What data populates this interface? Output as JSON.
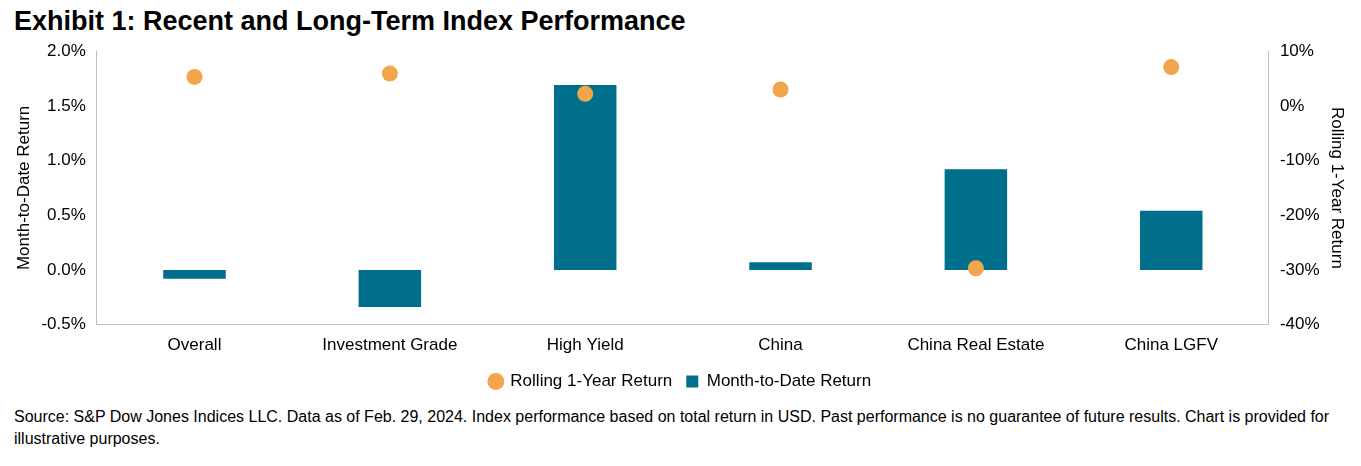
{
  "chart_data": {
    "type": "bar",
    "title": "Exhibit 1: Recent and Long-Term Index Performance",
    "annotations": [
      "Source: S&P Dow Jones Indices LLC.  Data as of Feb. 29, 2024.  Index performance based on total return in USD.  Past performance is no guarantee of future results.  Chart is provided for illustrative purposes."
    ],
    "y_label": "Month-to-Date Return",
    "y2_label": "Rolling 1-Year Return",
    "categories": [
      "Overall",
      "Investment Grade",
      "High Yield",
      "China",
      "China Real Estate",
      "China LGFV"
    ],
    "series": [
      {
        "name": "Month-to-Date Return",
        "type": "bar",
        "color": "#006f8b",
        "values": [
          -0.08,
          -0.34,
          1.69,
          0.07,
          0.92,
          0.54
        ]
      },
      {
        "name": "Rolling 1-Year Return",
        "type": "scatter",
        "marker": "circle",
        "axis": "y2",
        "color": "#f2a54a",
        "values": [
          5.3,
          5.9,
          2.2,
          3.0,
          -29.7,
          7.1
        ]
      }
    ],
    "ylim": [
      -0.5,
      2.0
    ],
    "yticks": [
      {
        "value": -0.5,
        "label": "-0.5%"
      },
      {
        "value": 0,
        "label": "0.0%"
      },
      {
        "value": 0.5,
        "label": "0.5%"
      },
      {
        "value": 1.0,
        "label": "1.0%"
      },
      {
        "value": 1.5,
        "label": "1.5%"
      },
      {
        "value": 2.0,
        "label": "2.0%"
      }
    ],
    "y2lim": [
      -40,
      10
    ],
    "y2ticks": [
      {
        "value": -40,
        "label": "-40%"
      },
      {
        "value": -30,
        "label": "-30%"
      },
      {
        "value": -20,
        "label": "-20%"
      },
      {
        "value": -10,
        "label": "-10%"
      },
      {
        "value": 0,
        "label": "0%"
      },
      {
        "value": 10,
        "label": "10%"
      }
    ],
    "grid": false,
    "legend": "bottom"
  }
}
